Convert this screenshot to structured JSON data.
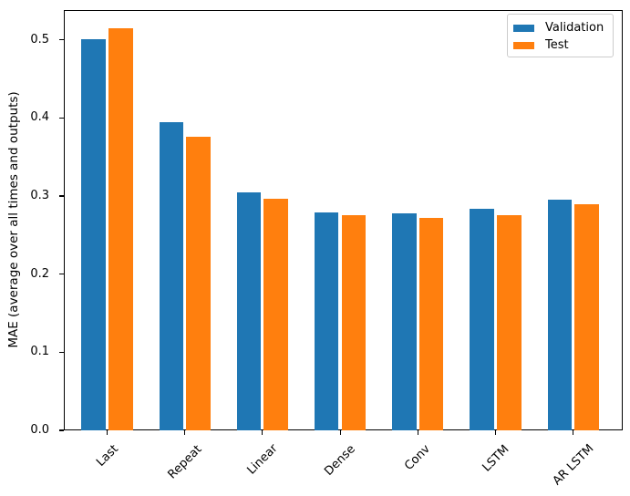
{
  "chart_data": {
    "type": "bar",
    "title": "",
    "xlabel": "",
    "ylabel": "MAE (average over all times and outputs)",
    "categories": [
      "Last",
      "Repeat",
      "Linear",
      "Dense",
      "Conv",
      "LSTM",
      "AR LSTM"
    ],
    "series": [
      {
        "name": "Validation",
        "color": "#1f77b4",
        "values": [
          0.501,
          0.394,
          0.305,
          0.279,
          0.278,
          0.284,
          0.295
        ]
      },
      {
        "name": "Test",
        "color": "#ff7f0e",
        "values": [
          0.515,
          0.376,
          0.297,
          0.275,
          0.272,
          0.275,
          0.29
        ]
      }
    ],
    "ylim": [
      0.0,
      0.538
    ],
    "yticks": [
      0.0,
      0.1,
      0.2,
      0.3,
      0.4,
      0.5
    ],
    "ytick_labels": [
      "0.0",
      "0.1",
      "0.2",
      "0.3",
      "0.4",
      "0.5"
    ],
    "x_tick_rotation": 45,
    "grid": false,
    "legend_position": "upper right",
    "axis_color": "#000000",
    "background_color": "#ffffff"
  }
}
